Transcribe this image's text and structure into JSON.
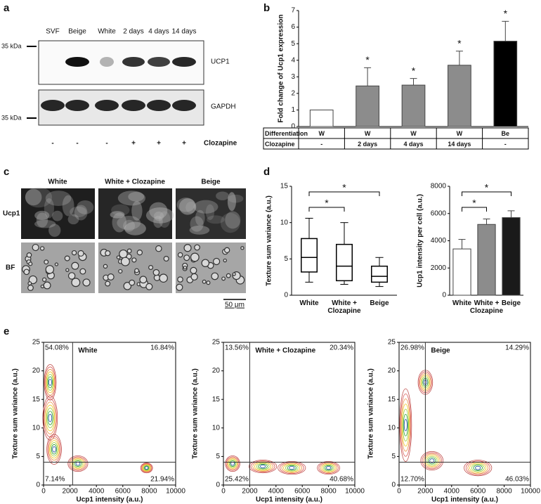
{
  "panel_labels": [
    "a",
    "b",
    "c",
    "d",
    "e"
  ],
  "panel_a": {
    "lanes": [
      "SVF",
      "Beige",
      "White",
      "2 days",
      "4 days",
      "14 days"
    ],
    "markers": [
      "35 kDa",
      "35 kDa"
    ],
    "bands": [
      "UCP1",
      "GAPDH"
    ],
    "treatment": {
      "label": "Clozapine",
      "values": [
        "-",
        "-",
        "-",
        "+",
        "+",
        "+"
      ]
    }
  },
  "panel_c": {
    "columns": [
      "White",
      "White + Clozapine",
      "Beige"
    ],
    "rows": [
      "Ucp1",
      "BF"
    ],
    "scale_bar": "50 μm"
  },
  "chart_data": [
    {
      "type": "bar",
      "ylabel": "Fold change of Ucp1 expression",
      "values": [
        1,
        2.45,
        2.5,
        3.7,
        5.15
      ],
      "errors": [
        null,
        1.1,
        0.4,
        0.85,
        1.2
      ],
      "colors": [
        "#ffffff",
        "#8c8c8c",
        "#8c8c8c",
        "#8c8c8c",
        "#000000"
      ],
      "annotations": [
        null,
        "*",
        "*",
        "*",
        "*"
      ],
      "ylim": [
        0,
        7
      ],
      "yticks": [
        0,
        1,
        2,
        3,
        4,
        5,
        6,
        7
      ],
      "table": {
        "rows": [
          [
            "Differentiation",
            "W",
            "W",
            "W",
            "W",
            "Be"
          ],
          [
            "Clozapine",
            "-",
            "2 days",
            "4 days",
            "14 days",
            "-"
          ]
        ]
      }
    },
    {
      "type": "box",
      "ylabel": "Texture sum variance (a.u.)",
      "categories": [
        "White",
        "White + Clozapine",
        "Beige"
      ],
      "boxes": [
        {
          "whislo": 1.8,
          "q1": 3.2,
          "med": 5.2,
          "q3": 7.8,
          "whishi": 10.6
        },
        {
          "whislo": 1.5,
          "q1": 2.0,
          "med": 4.0,
          "q3": 7.0,
          "whishi": 10.0
        },
        {
          "whislo": 1.2,
          "q1": 1.8,
          "med": 2.6,
          "q3": 4.0,
          "whishi": 5.2
        }
      ],
      "ylim": [
        0,
        15
      ],
      "yticks": [
        0,
        5,
        10,
        15
      ],
      "brackets": [
        {
          "from": 0,
          "to": 1,
          "label": "*"
        },
        {
          "from": 0,
          "to": 2,
          "label": "*"
        }
      ]
    },
    {
      "type": "bar",
      "ylabel": "Ucp1 intensity per cell (a.u.)",
      "categories": [
        "White",
        "White + Clozapine",
        "Beige"
      ],
      "values": [
        3400,
        5200,
        5700
      ],
      "errors": [
        700,
        400,
        500
      ],
      "colors": [
        "#ffffff",
        "#8c8c8c",
        "#1a1a1a"
      ],
      "ylim": [
        0,
        8000
      ],
      "yticks": [
        0,
        2000,
        4000,
        6000,
        8000
      ],
      "brackets": [
        {
          "from": 0,
          "to": 1,
          "label": "*"
        },
        {
          "from": 0,
          "to": 2,
          "label": "*"
        }
      ]
    },
    {
      "type": "contour",
      "title": "White",
      "xlabel": "Ucp1 intensity (a.u.)",
      "ylabel": "Texture sum variance (a.u.)",
      "xlim": [
        0,
        10000
      ],
      "xticks": [
        0,
        2000,
        4000,
        6000,
        8000,
        10000
      ],
      "ylim": [
        0,
        25
      ],
      "yticks": [
        0,
        5,
        10,
        15,
        20,
        25
      ],
      "gates": {
        "x": 2200,
        "y": 4
      },
      "quadrants": {
        "upper_left": "54.08%",
        "upper_right": "16.84%",
        "lower_left": "7.14%",
        "lower_right": "21.94%"
      }
    },
    {
      "type": "contour",
      "title": "White + Clozapine",
      "xlabel": "Ucp1 intensity (a.u.)",
      "ylabel": "Texture sum variance (a.u.)",
      "xlim": [
        0,
        10000
      ],
      "xticks": [
        0,
        2000,
        4000,
        6000,
        8000,
        10000
      ],
      "ylim": [
        0,
        25
      ],
      "yticks": [
        0,
        5,
        10,
        15,
        20,
        25
      ],
      "gates": {
        "x": 2000,
        "y": 4
      },
      "quadrants": {
        "upper_left": "13.56%",
        "upper_right": "20.34%",
        "lower_left": "25.42%",
        "lower_right": "40.68%"
      }
    },
    {
      "type": "contour",
      "title": "Beige",
      "xlabel": "Ucp1 intensity (a.u.)",
      "ylabel": "Texture sum variance (a.u.)",
      "xlim": [
        0,
        10000
      ],
      "xticks": [
        0,
        2000,
        4000,
        6000,
        8000,
        10000
      ],
      "ylim": [
        0,
        25
      ],
      "yticks": [
        0,
        5,
        10,
        15,
        20,
        25
      ],
      "gates": {
        "x": 2000,
        "y": 4
      },
      "quadrants": {
        "upper_left": "26.98%",
        "upper_right": "14.29%",
        "lower_left": "12.70%",
        "lower_right": "46.03%"
      }
    }
  ]
}
